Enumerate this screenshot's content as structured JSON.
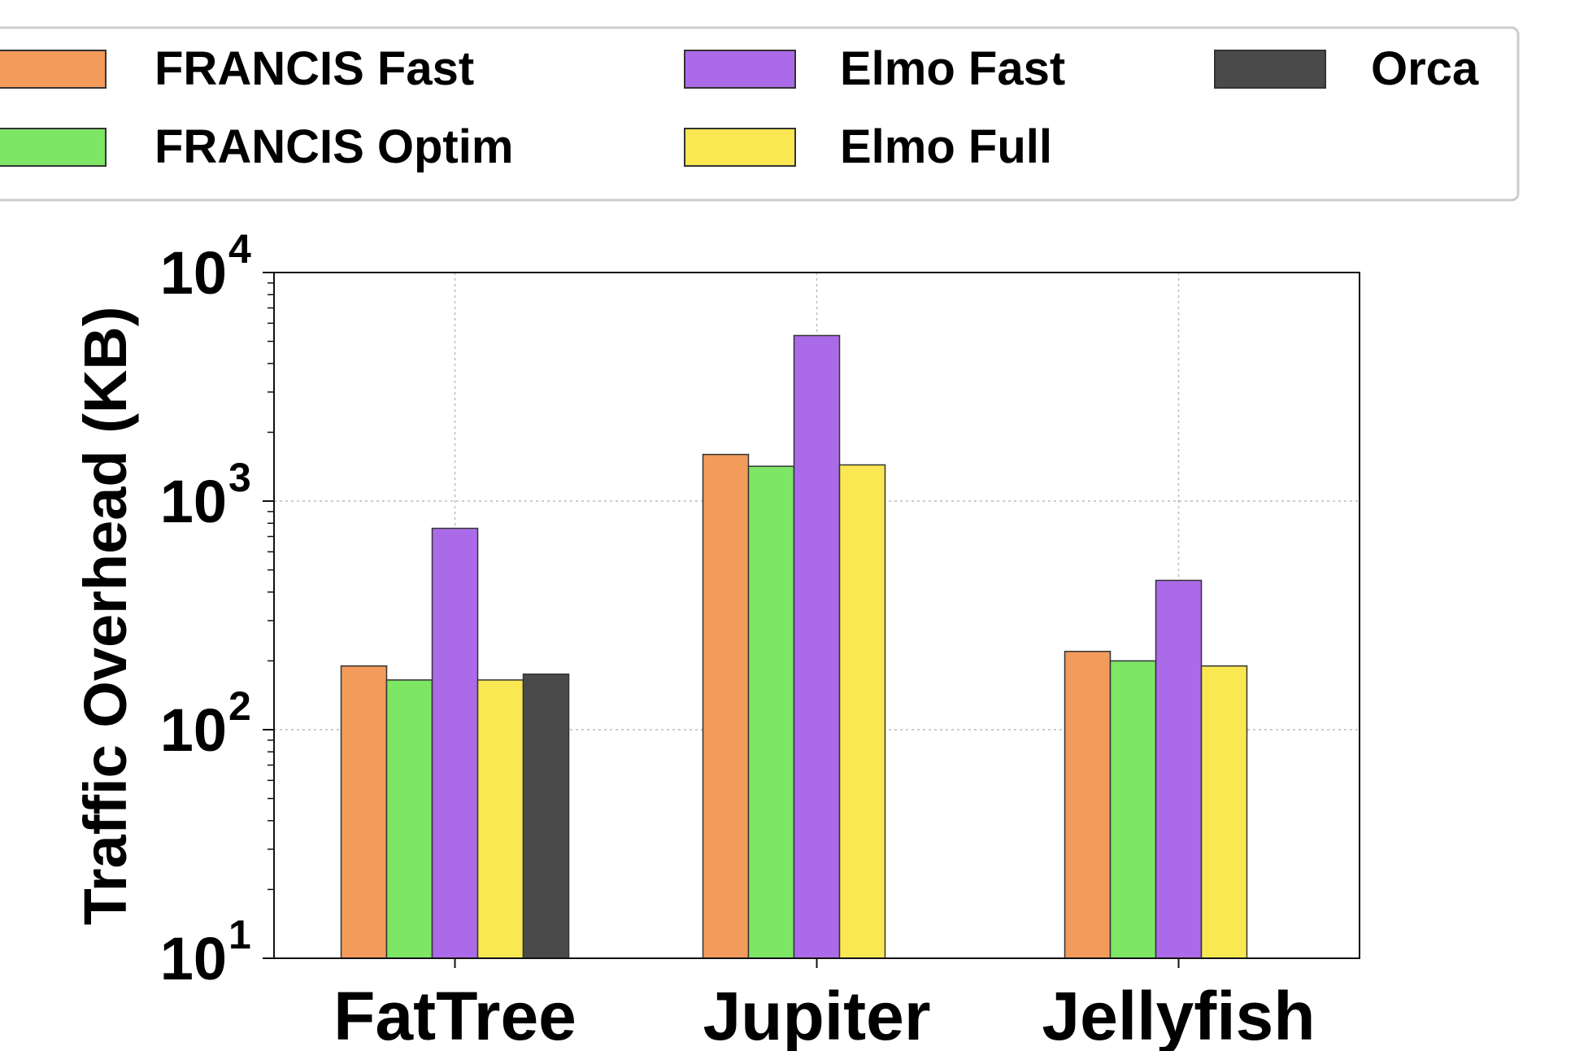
{
  "chart_data": {
    "type": "bar",
    "title": "",
    "xlabel": "",
    "ylabel": "Traffic Overhead (KB)",
    "yscale": "log",
    "ylim": [
      10,
      10000
    ],
    "grid": true,
    "legend_position": "top",
    "categories": [
      "FatTree",
      "Jupiter",
      "Jellyfish"
    ],
    "y_ticks": [
      {
        "base": "10",
        "exp": "1",
        "value": 10
      },
      {
        "base": "10",
        "exp": "2",
        "value": 100
      },
      {
        "base": "10",
        "exp": "3",
        "value": 1000
      },
      {
        "base": "10",
        "exp": "4",
        "value": 10000
      }
    ],
    "series": [
      {
        "name": "FRANCIS Fast",
        "color": "#f29b5b",
        "values": [
          190,
          1600,
          220
        ]
      },
      {
        "name": "FRANCIS Optim",
        "color": "#7de665",
        "values": [
          165,
          1420,
          200
        ]
      },
      {
        "name": "Elmo Fast",
        "color": "#ab6be8",
        "values": [
          760,
          5300,
          450
        ]
      },
      {
        "name": "Elmo Full",
        "color": "#f9e852",
        "values": [
          165,
          1440,
          190
        ]
      },
      {
        "name": "Orca",
        "color": "#4a4a4a",
        "values": [
          175,
          null,
          null
        ]
      }
    ]
  }
}
